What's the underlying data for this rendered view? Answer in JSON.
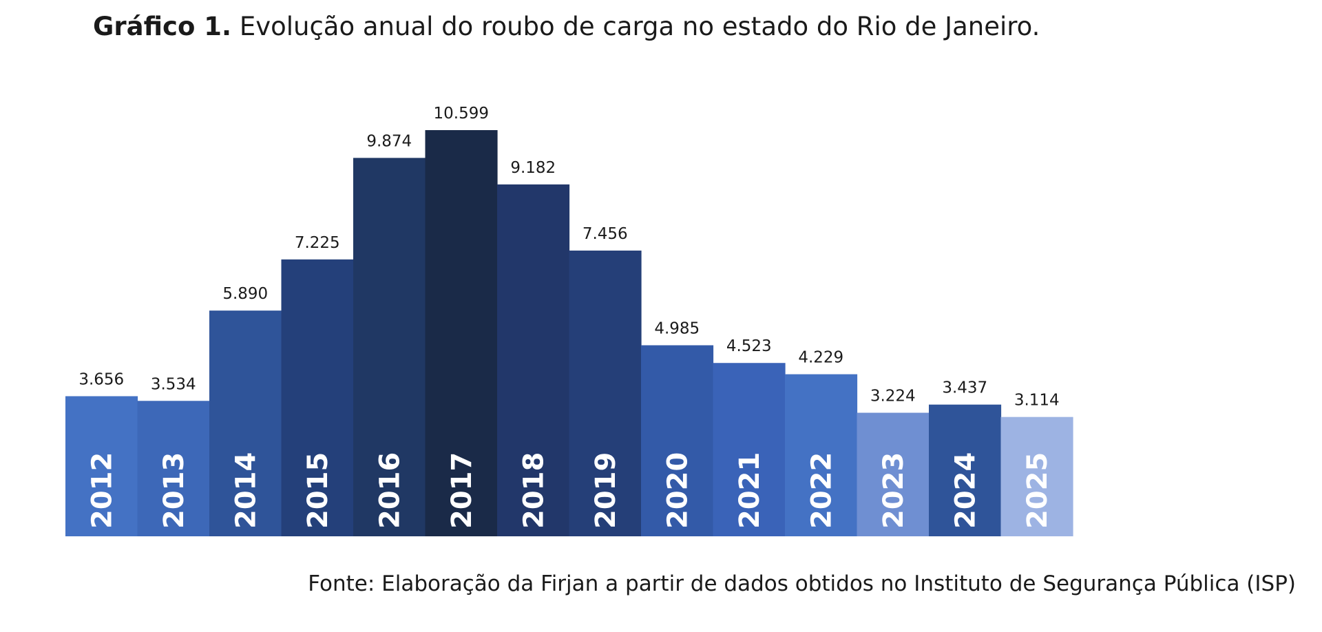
{
  "title": {
    "label": "Gráfico 1.",
    "text": "Evolução anual do roubo de carga no estado do Rio de Janeiro."
  },
  "source": "Fonte: Elaboração da Firjan a partir de dados obtidos no Instituto de Segurança Pública (ISP)",
  "chart_data": {
    "type": "bar",
    "title": "Gráfico 1. Evolução anual do roubo de carga no estado do Rio de Janeiro.",
    "xlabel": "",
    "ylabel": "",
    "ylim": [
      0,
      10599
    ],
    "grid": false,
    "legend": "none",
    "categories": [
      "2012",
      "2013",
      "2014",
      "2015",
      "2016",
      "2017",
      "2018",
      "2019",
      "2020",
      "2021",
      "2022",
      "2023",
      "2024",
      "2025"
    ],
    "values": [
      3656,
      3534,
      5890,
      7225,
      9874,
      10599,
      9182,
      7456,
      4985,
      4523,
      4229,
      3224,
      3437,
      3114
    ],
    "value_labels": [
      "3.656",
      "3.534",
      "5.890",
      "7.225",
      "9.874",
      "10.599",
      "9.182",
      "7.456",
      "4.985",
      "4.523",
      "4.229",
      "3.224",
      "3.437",
      "3.114"
    ],
    "colors": [
      "#4472c4",
      "#3d68b8",
      "#2f5499",
      "#24407a",
      "#203864",
      "#1a2a48",
      "#22376a",
      "#253f78",
      "#335aa8",
      "#3a63b8",
      "#4472c4",
      "#6f8fd2",
      "#2f5499",
      "#9db3e3"
    ]
  }
}
